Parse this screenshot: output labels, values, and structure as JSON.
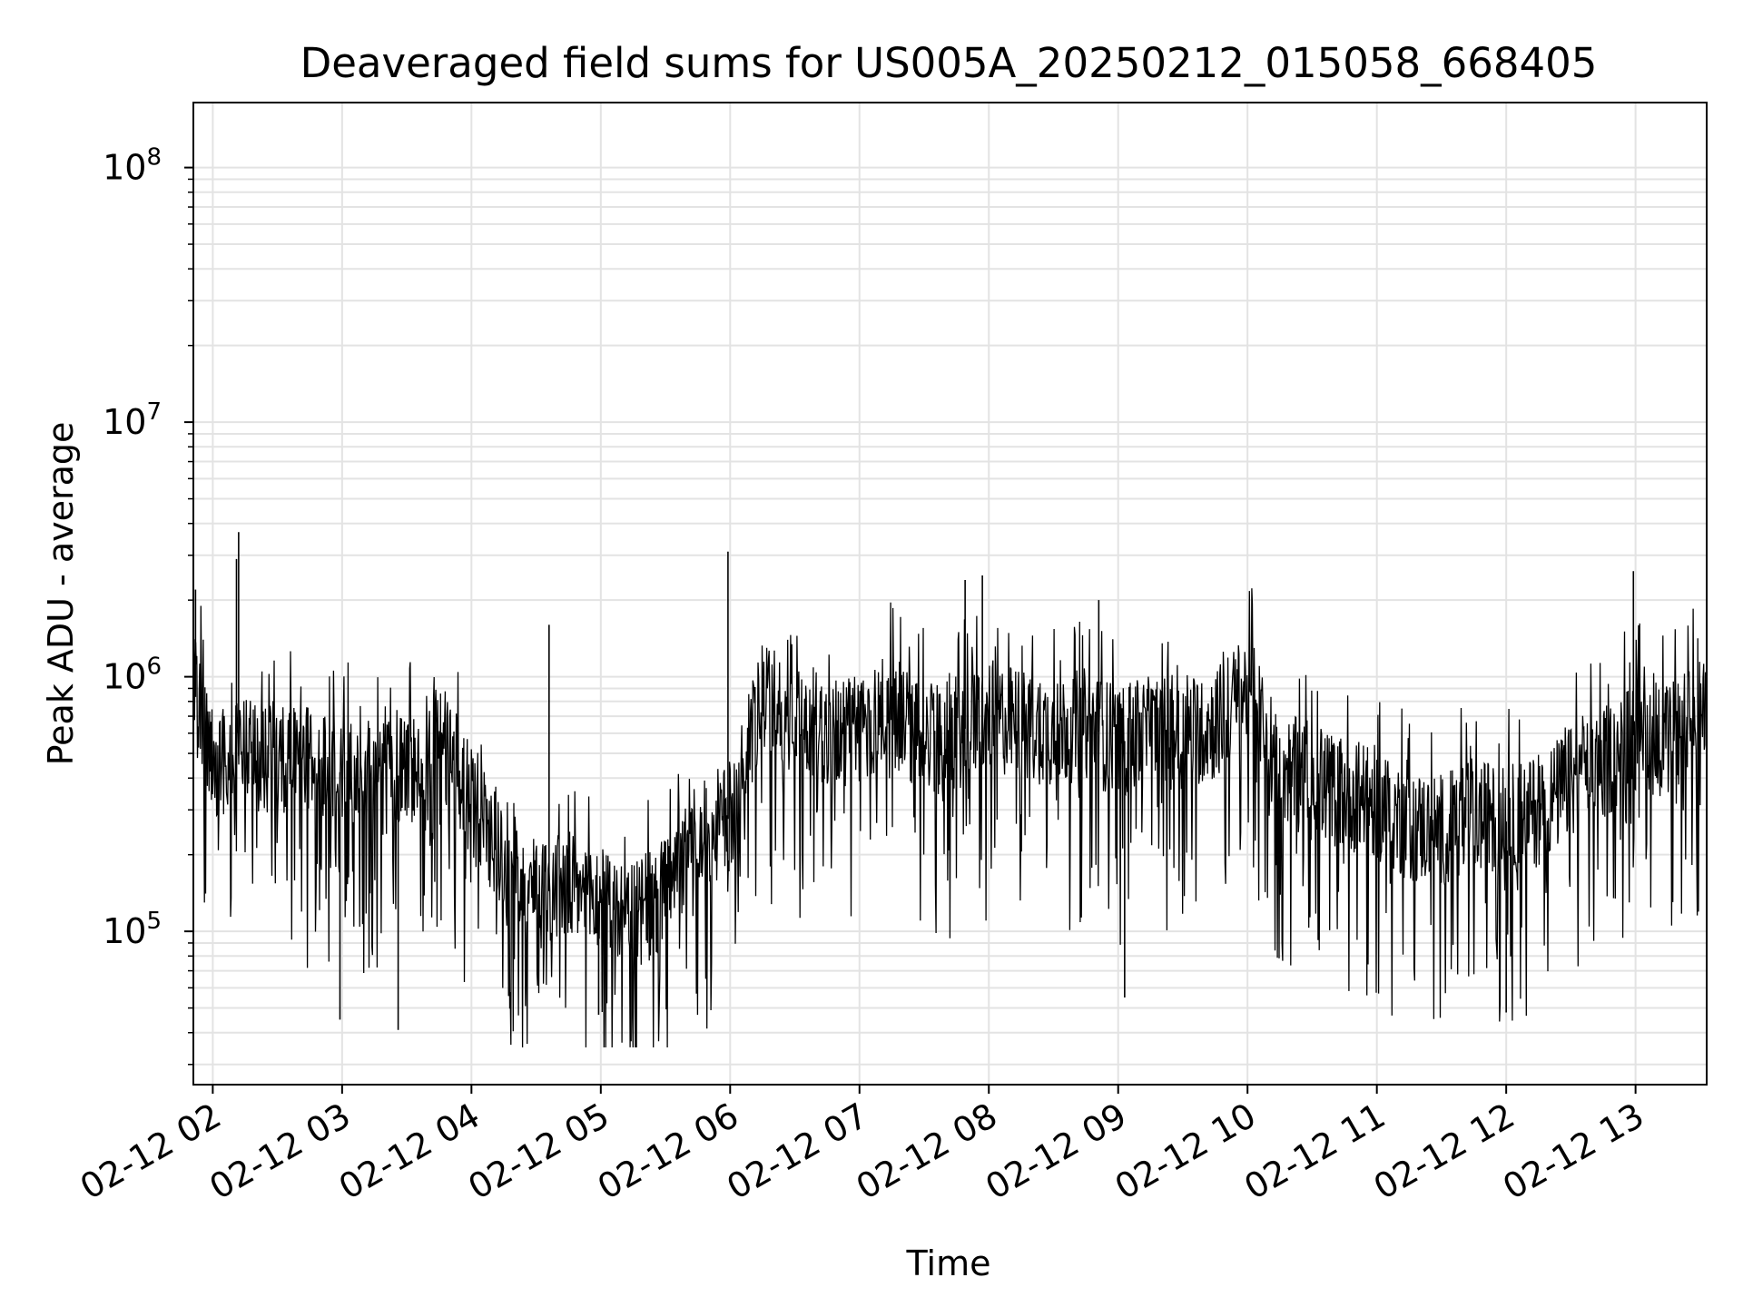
{
  "chart_data": {
    "type": "line",
    "title": "Deaveraged field sums for US005A_20250212_015058_668405",
    "xlabel": "Time",
    "ylabel": "Peak ADU - average",
    "yscale": "log",
    "ylim": [
      25000,
      180000000
    ],
    "xlim_hours": [
      1.85,
      13.55
    ],
    "grid": true,
    "line_color": "#000000",
    "x_ticks": [
      {
        "hour": 2,
        "label": "02-12 02"
      },
      {
        "hour": 3,
        "label": "02-12 03"
      },
      {
        "hour": 4,
        "label": "02-12 04"
      },
      {
        "hour": 5,
        "label": "02-12 05"
      },
      {
        "hour": 6,
        "label": "02-12 06"
      },
      {
        "hour": 7,
        "label": "02-12 07"
      },
      {
        "hour": 8,
        "label": "02-12 08"
      },
      {
        "hour": 9,
        "label": "02-12 09"
      },
      {
        "hour": 10,
        "label": "02-12 10"
      },
      {
        "hour": 11,
        "label": "02-12 11"
      },
      {
        "hour": 12,
        "label": "02-12 12"
      },
      {
        "hour": 13,
        "label": "02-12 13"
      }
    ],
    "y_ticks": [
      {
        "value": 100000,
        "base": "10",
        "exp": "5"
      },
      {
        "value": 1000000,
        "base": "10",
        "exp": "6"
      },
      {
        "value": 10000000,
        "base": "10",
        "exp": "7"
      },
      {
        "value": 100000000,
        "base": "10",
        "exp": "8"
      }
    ],
    "series": [
      {
        "x": [
          "02-12 01:51",
          "02-12 02:00",
          "02-12 02:15",
          "02-12 02:30",
          "02-12 02:45",
          "02-12 03:00",
          "02-12 03:15",
          "02-12 03:30",
          "02-12 03:45",
          "02-12 04:00",
          "02-12 04:15",
          "02-12 04:30",
          "02-12 04:45",
          "02-12 05:00",
          "02-12 05:15",
          "02-12 05:30",
          "02-12 05:45",
          "02-12 06:00",
          "02-12 06:15",
          "02-12 06:30",
          "02-12 06:45",
          "02-12 07:00",
          "02-12 07:15",
          "02-12 07:30",
          "02-12 07:45",
          "02-12 08:00",
          "02-12 08:15",
          "02-12 08:30",
          "02-12 08:45",
          "02-12 09:00",
          "02-12 09:15",
          "02-12 09:30",
          "02-12 09:45",
          "02-12 10:00",
          "02-12 10:15",
          "02-12 10:30",
          "02-12 10:45",
          "02-12 11:00",
          "02-12 11:15",
          "02-12 11:30",
          "02-12 11:45",
          "02-12 12:00",
          "02-12 12:15",
          "02-12 12:30",
          "02-12 12:45",
          "02-12 13:00",
          "02-12 13:15",
          "02-12 13:30"
        ],
        "base_values": [
          900000,
          450000,
          500000,
          480000,
          450000,
          420000,
          380000,
          420000,
          600000,
          320000,
          200000,
          140000,
          150000,
          130000,
          110000,
          140000,
          230000,
          280000,
          800000,
          700000,
          600000,
          620000,
          750000,
          550000,
          600000,
          700000,
          650000,
          620000,
          650000,
          550000,
          600000,
          600000,
          650000,
          900000,
          450000,
          380000,
          350000,
          320000,
          260000,
          250000,
          280000,
          270000,
          300000,
          380000,
          450000,
          600000,
          550000,
          700000
        ],
        "spikes": [
          {
            "x": "02-12 01:52",
            "value": 2200000
          },
          {
            "x": "02-12 02:11",
            "value": 2900000
          },
          {
            "x": "02-12 02:12",
            "value": 3700000
          },
          {
            "x": "02-12 04:36",
            "value": 1600000
          },
          {
            "x": "02-12 05:59",
            "value": 3100000
          },
          {
            "x": "02-12 07:49",
            "value": 2400000
          },
          {
            "x": "02-12 07:57",
            "value": 2500000
          },
          {
            "x": "02-12 08:51",
            "value": 2000000
          },
          {
            "x": "02-12 12:59",
            "value": 2600000
          },
          {
            "x": "02-12 05:14",
            "value": 37000
          },
          {
            "x": "02-12 02:59",
            "value": 45000
          },
          {
            "x": "02-12 03:26",
            "value": 41000
          },
          {
            "x": "02-12 04:59",
            "value": 47000
          },
          {
            "x": "02-12 09:03",
            "value": 55000
          },
          {
            "x": "02-12 12:00",
            "value": 48000
          }
        ]
      }
    ]
  }
}
